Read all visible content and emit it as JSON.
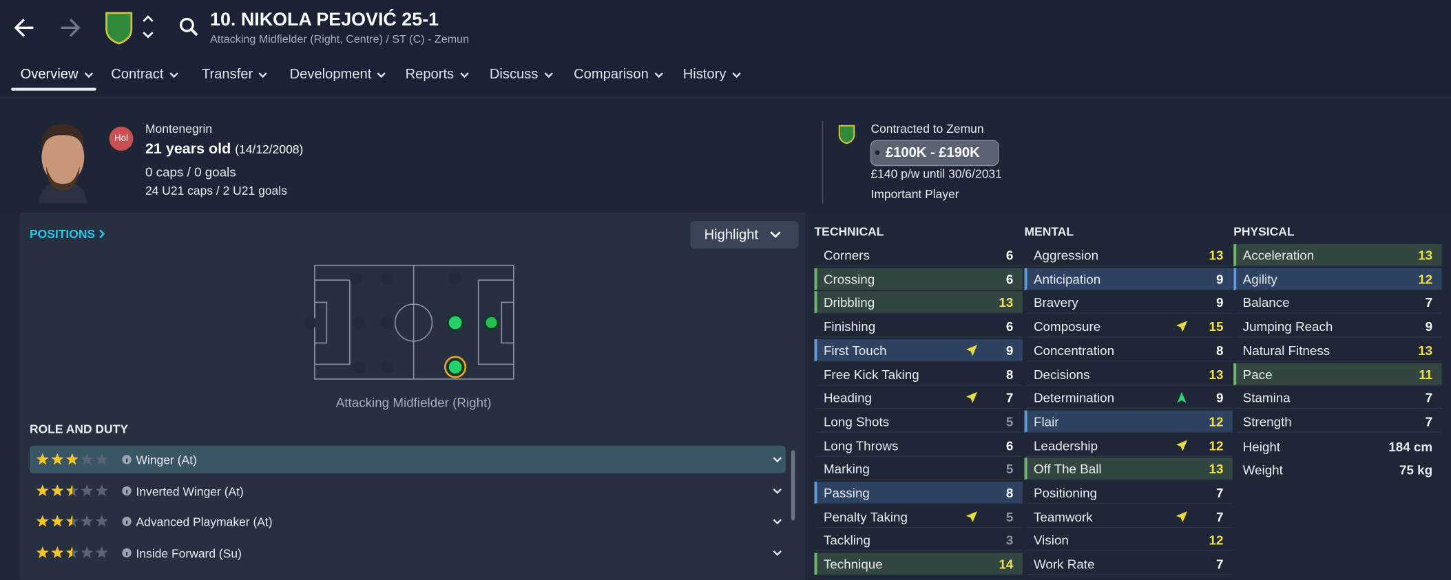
{
  "header": {
    "title": "10. NIKOLA PEJOVIĆ 25-1",
    "subtitle": "Attacking Midfielder (Right, Centre) / ST (C) - Zemun"
  },
  "tabs": [
    "Overview",
    "Contract",
    "Transfer",
    "Development",
    "Reports",
    "Discuss",
    "Comparison",
    "History"
  ],
  "profile": {
    "badge": "Hol",
    "nationality": "Montenegrin",
    "age": "21 years old",
    "dob": "(14/12/2008)",
    "caps": "0 caps / 0 goals",
    "u21": "24 U21 caps / 2 U21 goals"
  },
  "contract": {
    "club": "Contracted to Zemun",
    "value": "£100K - £190K",
    "wage": "£140 p/w until 30/6/2031",
    "status": "Important Player"
  },
  "positions": {
    "title": "POSITIONS",
    "highlight": "Highlight",
    "caption": "Attacking Midfielder (Right)"
  },
  "roles": {
    "title": "ROLE AND DUTY",
    "items": [
      {
        "name": "Winger (At)",
        "stars": 3
      },
      {
        "name": "Inverted Winger (At)",
        "stars": 2.5
      },
      {
        "name": "Advanced Playmaker (At)",
        "stars": 2.5
      },
      {
        "name": "Inside Forward (Su)",
        "stars": 2.5
      }
    ]
  },
  "attributes": {
    "technical": {
      "title": "TECHNICAL",
      "items": [
        {
          "name": "Corners",
          "value": 6
        },
        {
          "name": "Crossing",
          "value": 6,
          "highlight": "green"
        },
        {
          "name": "Dribbling",
          "value": 13,
          "highlight": "green"
        },
        {
          "name": "Finishing",
          "value": 6
        },
        {
          "name": "First Touch",
          "value": 9,
          "highlight": "blue",
          "arrow": "yellow"
        },
        {
          "name": "Free Kick Taking",
          "value": 8
        },
        {
          "name": "Heading",
          "value": 7,
          "arrow": "yellow"
        },
        {
          "name": "Long Shots",
          "value": 5
        },
        {
          "name": "Long Throws",
          "value": 6
        },
        {
          "name": "Marking",
          "value": 5
        },
        {
          "name": "Passing",
          "value": 8,
          "highlight": "blue"
        },
        {
          "name": "Penalty Taking",
          "value": 5,
          "arrow": "yellow"
        },
        {
          "name": "Tackling",
          "value": 3
        },
        {
          "name": "Technique",
          "value": 14,
          "highlight": "green"
        }
      ]
    },
    "mental": {
      "title": "MENTAL",
      "items": [
        {
          "name": "Aggression",
          "value": 13
        },
        {
          "name": "Anticipation",
          "value": 9,
          "highlight": "blue"
        },
        {
          "name": "Bravery",
          "value": 9
        },
        {
          "name": "Composure",
          "value": 15,
          "arrow": "yellow"
        },
        {
          "name": "Concentration",
          "value": 8
        },
        {
          "name": "Decisions",
          "value": 13
        },
        {
          "name": "Determination",
          "value": 9,
          "arrow": "green"
        },
        {
          "name": "Flair",
          "value": 12,
          "highlight": "blue"
        },
        {
          "name": "Leadership",
          "value": 12,
          "arrow": "yellow"
        },
        {
          "name": "Off The Ball",
          "value": 13,
          "highlight": "green"
        },
        {
          "name": "Positioning",
          "value": 7
        },
        {
          "name": "Teamwork",
          "value": 7,
          "arrow": "yellow"
        },
        {
          "name": "Vision",
          "value": 12
        },
        {
          "name": "Work Rate",
          "value": 7
        }
      ]
    },
    "physical": {
      "title": "PHYSICAL",
      "items": [
        {
          "name": "Acceleration",
          "value": 13,
          "highlight": "green"
        },
        {
          "name": "Agility",
          "value": 12,
          "highlight": "blue"
        },
        {
          "name": "Balance",
          "value": 7
        },
        {
          "name": "Jumping Reach",
          "value": 9
        },
        {
          "name": "Natural Fitness",
          "value": 13
        },
        {
          "name": "Pace",
          "value": 11,
          "highlight": "green"
        },
        {
          "name": "Stamina",
          "value": 7
        },
        {
          "name": "Strength",
          "value": 7
        }
      ],
      "extra": [
        {
          "name": "Height",
          "value": "184 cm"
        },
        {
          "name": "Weight",
          "value": "75 kg"
        }
      ]
    }
  }
}
